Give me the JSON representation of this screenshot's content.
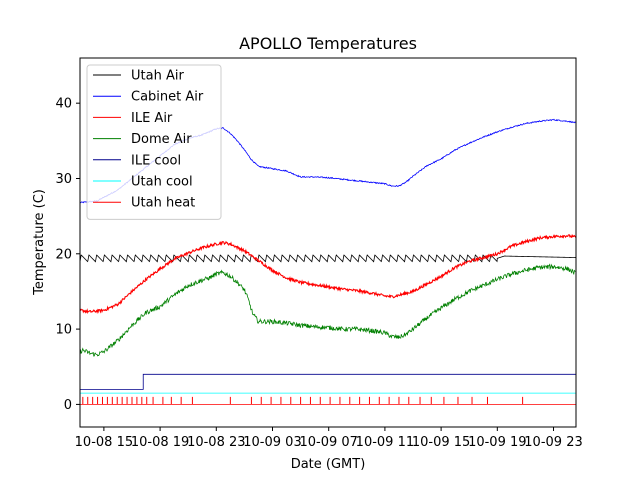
{
  "chart_data": {
    "type": "line",
    "title": "APOLLO Temperatures",
    "xlabel": "Date (GMT)",
    "ylabel": "Temperature (C)",
    "xlim": [
      13.3,
      48.6
    ],
    "ylim": [
      -3,
      46
    ],
    "yticks": [
      0,
      10,
      20,
      30,
      40
    ],
    "xticks": [
      {
        "value": 15,
        "label": "10-08 15"
      },
      {
        "value": 19,
        "label": "10-08 19"
      },
      {
        "value": 23,
        "label": "10-08 23"
      },
      {
        "value": 27,
        "label": "10-09 03"
      },
      {
        "value": 31,
        "label": "10-09 07"
      },
      {
        "value": 35,
        "label": "10-09 11"
      },
      {
        "value": 39,
        "label": "10-09 15"
      },
      {
        "value": 43,
        "label": "10-09 19"
      },
      {
        "value": 47,
        "label": "10-09 23"
      }
    ],
    "grid": false,
    "legend_position": "top-left",
    "series": [
      {
        "name": "Utah Air",
        "color": "#000000",
        "x": [
          13.3,
          19.0,
          24.0,
          43.0,
          43.5,
          48.6
        ],
        "y": [
          19.4,
          19.4,
          19.4,
          19.4,
          19.7,
          19.5
        ],
        "oscillation": {
          "period": 0.55,
          "amplitude": 0.45,
          "end": 43.0
        }
      },
      {
        "name": "Cabinet Air",
        "color": "#0000ff",
        "x": [
          13.3,
          14.5,
          16.0,
          17.0,
          18.0,
          19.0,
          20.0,
          21.0,
          22.0,
          23.0,
          23.5,
          24.0,
          24.5,
          25.0,
          25.5,
          26.0,
          27.0,
          28.0,
          28.5,
          29.0,
          30.0,
          31.0,
          32.0,
          33.0,
          34.0,
          35.0,
          35.5,
          36.0,
          36.5,
          37.0,
          38.0,
          39.0,
          40.0,
          41.0,
          42.0,
          43.0,
          44.0,
          45.0,
          46.0,
          47.0,
          48.0,
          48.6
        ],
        "y": [
          26.8,
          27.0,
          28.5,
          30.0,
          31.5,
          33.0,
          34.5,
          35.3,
          35.8,
          36.6,
          36.7,
          36.0,
          35.0,
          33.8,
          32.5,
          31.6,
          31.3,
          31.0,
          30.6,
          30.2,
          30.2,
          30.1,
          29.9,
          29.7,
          29.5,
          29.3,
          29.0,
          29.0,
          29.5,
          30.3,
          31.7,
          32.6,
          33.8,
          34.7,
          35.5,
          36.2,
          36.8,
          37.3,
          37.6,
          37.8,
          37.6,
          37.4
        ],
        "noise": 0.08
      },
      {
        "name": "ILE Air",
        "color": "#ff0000",
        "x": [
          13.3,
          14.0,
          15.0,
          16.0,
          17.0,
          18.0,
          19.0,
          20.0,
          21.0,
          22.0,
          23.0,
          23.5,
          24.0,
          25.0,
          26.0,
          27.0,
          28.0,
          29.0,
          30.0,
          31.0,
          32.0,
          33.0,
          34.0,
          35.0,
          35.5,
          36.0,
          37.0,
          38.0,
          39.0,
          40.0,
          41.0,
          42.0,
          43.0,
          44.0,
          45.0,
          46.0,
          47.0,
          48.0,
          48.6
        ],
        "y": [
          12.5,
          12.3,
          12.5,
          13.3,
          15.0,
          16.6,
          18.0,
          19.3,
          20.1,
          20.8,
          21.3,
          21.5,
          21.3,
          20.4,
          19.1,
          17.8,
          16.8,
          16.2,
          15.9,
          15.6,
          15.3,
          15.1,
          14.8,
          14.4,
          14.3,
          14.5,
          15.0,
          16.0,
          17.0,
          18.2,
          19.0,
          19.5,
          20.0,
          21.0,
          21.6,
          22.1,
          22.3,
          22.4,
          22.2
        ],
        "noise": 0.18
      },
      {
        "name": "Dome Air",
        "color": "#008000",
        "x": [
          13.3,
          13.5,
          14.0,
          14.5,
          15.0,
          16.0,
          17.0,
          18.0,
          19.0,
          20.0,
          21.0,
          22.0,
          22.5,
          23.0,
          23.5,
          24.0,
          24.5,
          25.0,
          25.3,
          25.6,
          26.0,
          27.0,
          28.0,
          29.0,
          30.0,
          31.0,
          32.0,
          33.0,
          34.0,
          35.0,
          35.5,
          36.0,
          36.5,
          37.0,
          38.0,
          39.0,
          40.0,
          41.0,
          42.0,
          43.0,
          44.0,
          45.0,
          46.0,
          47.0,
          48.0,
          48.6
        ],
        "y": [
          7.0,
          7.2,
          6.8,
          6.6,
          7.0,
          8.5,
          10.5,
          12.2,
          13.0,
          14.5,
          15.8,
          16.5,
          16.8,
          17.3,
          17.5,
          17.0,
          16.2,
          15.2,
          13.8,
          12.0,
          11.0,
          11.0,
          10.8,
          10.5,
          10.3,
          10.2,
          10.0,
          10.0,
          9.8,
          9.5,
          9.0,
          8.9,
          9.3,
          10.0,
          11.5,
          12.8,
          14.0,
          15.0,
          15.8,
          16.6,
          17.3,
          17.8,
          18.2,
          18.3,
          18.0,
          17.4
        ],
        "noise": 0.3
      },
      {
        "name": "ILE cool",
        "color": "#00008b",
        "x": [
          13.3,
          17.8,
          17.8,
          48.6
        ],
        "y": [
          2.0,
          2.0,
          4.0,
          4.0
        ]
      },
      {
        "name": "Utah cool",
        "color": "#00ffff",
        "x": [
          13.3,
          48.6
        ],
        "y": [
          1.5,
          1.5
        ]
      },
      {
        "name": "Utah heat",
        "color": "#ff0000",
        "x": [
          13.3,
          48.6
        ],
        "y": [
          0.0,
          0.0
        ],
        "spikes": {
          "height": 1.0,
          "x": [
            13.5,
            13.85,
            14.2,
            14.55,
            14.9,
            15.25,
            15.6,
            15.95,
            16.3,
            16.65,
            17.0,
            17.35,
            17.7,
            18.05,
            18.5,
            19.2,
            19.8,
            20.5,
            21.3,
            24.0,
            25.5,
            26.2,
            26.9,
            27.6,
            28.3,
            29.0,
            29.7,
            30.4,
            31.1,
            31.8,
            32.5,
            33.2,
            33.9,
            34.6,
            35.3,
            36.0,
            36.7,
            37.5,
            38.3,
            39.2,
            40.2,
            41.2,
            42.3,
            44.8
          ]
        }
      }
    ]
  }
}
